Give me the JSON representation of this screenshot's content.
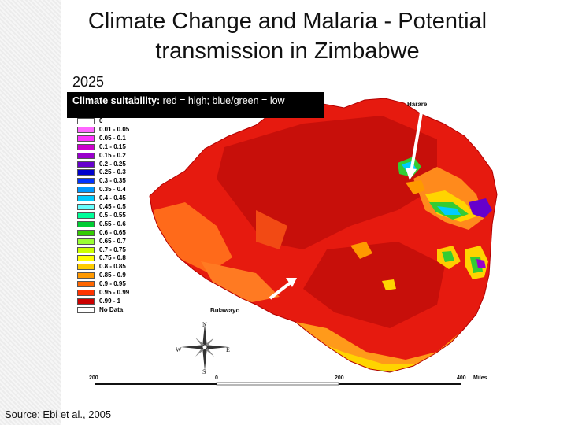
{
  "slide": {
    "title": "Climate Change and Malaria - Potential transmission in Zimbabwe",
    "year": "2025",
    "source": "Source: Ebi et al., 2005"
  },
  "map": {
    "caption_bold": "Climate suitability:",
    "caption_rest": " red = high;  blue/green = low",
    "cities": {
      "harare": "Harare",
      "bulawayo": "Bulawayo"
    },
    "compass": {
      "n": "N",
      "s": "S",
      "e": "E",
      "w": "W"
    },
    "scale": {
      "left": "200",
      "zero": "0",
      "mid": "200",
      "right": "400",
      "unit": "Miles"
    },
    "legend": [
      {
        "label": "0",
        "color": "#ffffff"
      },
      {
        "label": "0.01 - 0.05",
        "color": "#ff66ff"
      },
      {
        "label": "0.05 - 0.1",
        "color": "#ff33ff"
      },
      {
        "label": "0.1 - 0.15",
        "color": "#cc00cc"
      },
      {
        "label": "0.15 - 0.2",
        "color": "#9900cc"
      },
      {
        "label": "0.2 - 0.25",
        "color": "#6600cc"
      },
      {
        "label": "0.25 - 0.3",
        "color": "#0000cc"
      },
      {
        "label": "0.3 - 0.35",
        "color": "#0033ff"
      },
      {
        "label": "0.35 - 0.4",
        "color": "#0099ff"
      },
      {
        "label": "0.4 - 0.45",
        "color": "#00ccff"
      },
      {
        "label": "0.45 - 0.5",
        "color": "#66ffff"
      },
      {
        "label": "0.5 - 0.55",
        "color": "#00ff99"
      },
      {
        "label": "0.55 - 0.6",
        "color": "#00cc33"
      },
      {
        "label": "0.6 - 0.65",
        "color": "#33cc00"
      },
      {
        "label": "0.65 - 0.7",
        "color": "#99ff33"
      },
      {
        "label": "0.7 - 0.75",
        "color": "#ccff00"
      },
      {
        "label": "0.75 - 0.8",
        "color": "#ffff00"
      },
      {
        "label": "0.8 - 0.85",
        "color": "#ffcc00"
      },
      {
        "label": "0.85 - 0.9",
        "color": "#ff9900"
      },
      {
        "label": "0.9 - 0.95",
        "color": "#ff6600"
      },
      {
        "label": "0.95 - 0.99",
        "color": "#ff3300"
      },
      {
        "label": "0.99 - 1",
        "color": "#cc0000"
      },
      {
        "label": "No Data",
        "color": "#ffffff"
      }
    ]
  }
}
